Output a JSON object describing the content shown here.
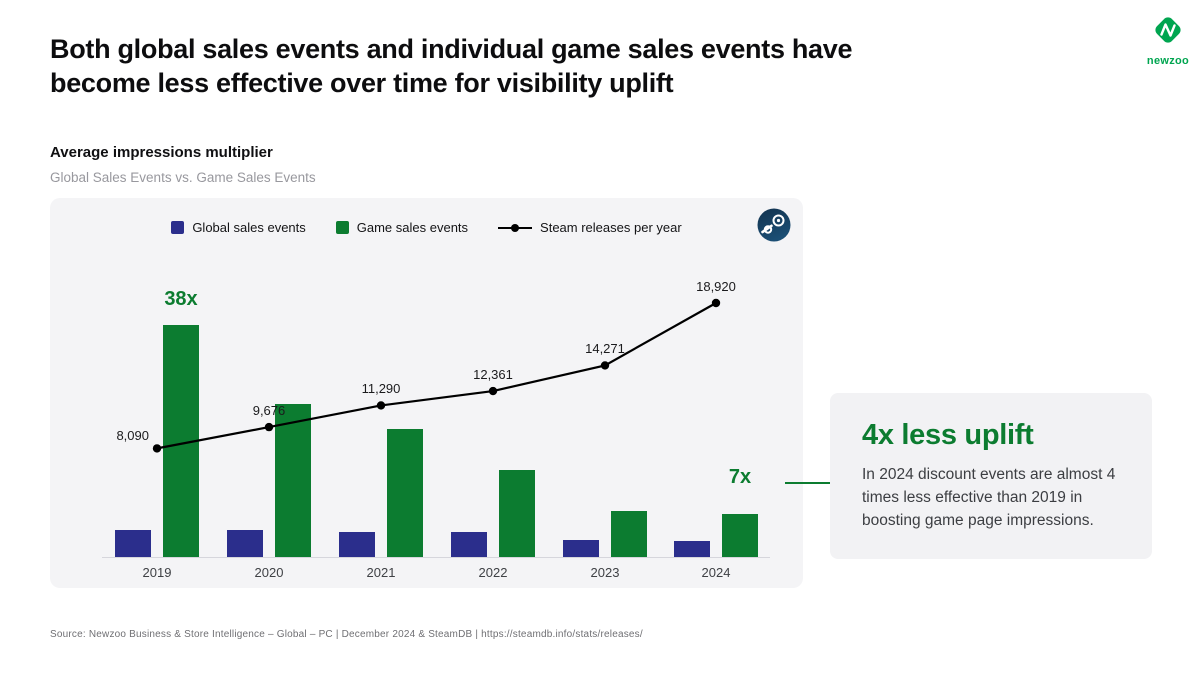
{
  "header": {
    "title_line1": "Both global sales events and individual game sales events have",
    "title_line2": "become less effective over time for visibility uplift",
    "chart_heading": "Average impressions multiplier",
    "chart_subheading": "Global Sales Events vs. Game Sales Events"
  },
  "logo": {
    "brand": "newzoo"
  },
  "chart_data": {
    "type": "bar",
    "title": "Average impressions multiplier",
    "subtitle": "Global Sales Events vs. Game Sales Events",
    "categories": [
      "2019",
      "2020",
      "2021",
      "2022",
      "2023",
      "2024"
    ],
    "series": [
      {
        "name": "Global sales events",
        "type": "bar",
        "color": "#2b2e8c",
        "values": [
          4.4,
          4.4,
          4.1,
          4.1,
          2.8,
          2.6
        ]
      },
      {
        "name": "Game sales events",
        "type": "bar",
        "color": "#0c7c30",
        "values": [
          38,
          25,
          21,
          14.2,
          7.6,
          7
        ]
      },
      {
        "name": "Steam releases per year",
        "type": "line",
        "color": "#000000",
        "values": [
          8090,
          9676,
          11290,
          12361,
          14271,
          18920
        ],
        "value_labels": [
          "8,090",
          "9,676",
          "11,290",
          "12,361",
          "14,271",
          "18,920"
        ]
      }
    ],
    "annotations": [
      {
        "text": "38x",
        "category": "2019",
        "gap": 13
      },
      {
        "text": "7x",
        "category": "2024",
        "gap": 24
      }
    ],
    "bar_axis_max": 40,
    "line_axis_max": 20000,
    "legend_position": "top-center",
    "grid": false
  },
  "callout": {
    "title": "4x less uplift",
    "body": "In 2024 discount events are almost 4 times less effective than 2019 in boosting game page impressions."
  },
  "source": "Source: Newzoo Business & Store Intelligence – Global – PC | December 2024 & SteamDB | https://steamdb.info/stats/releases/",
  "colors": {
    "global_bar": "#2b2e8c",
    "game_bar": "#0c7c30",
    "line": "#000000",
    "accent_green": "#0c7c30",
    "logo_green": "#00a550",
    "panel_bg": "#f4f4f6",
    "callout_bg": "#f2f2f4"
  }
}
